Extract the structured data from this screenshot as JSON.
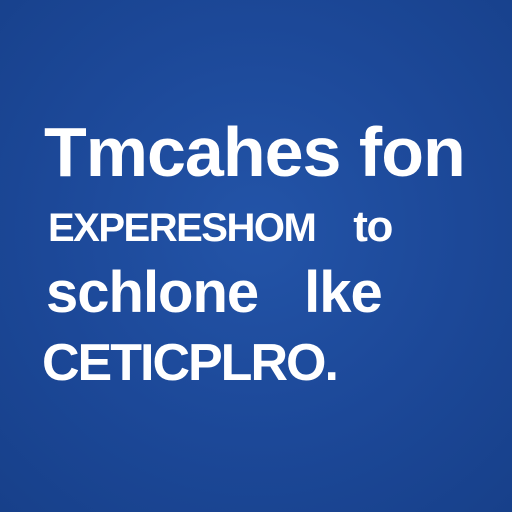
{
  "lines": {
    "line1": "Tmcahes fon",
    "line2_a": "EXPERESHOM",
    "line2_b": "to",
    "line3_a": "schlone",
    "line3_b": "lke",
    "line4": "CETICPLRO."
  },
  "colors": {
    "background": "#1c4898",
    "text": "#ffffff"
  }
}
